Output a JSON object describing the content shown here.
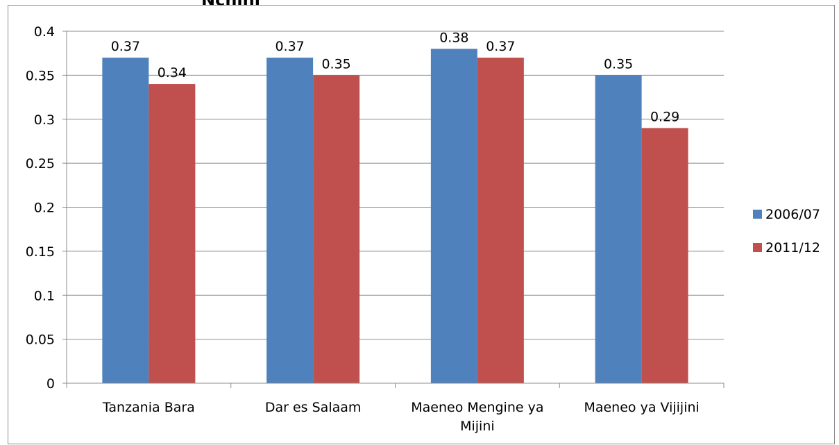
{
  "chart_data": {
    "type": "bar",
    "title_fragment": "Nchini",
    "categories": [
      [
        "Tanzania Bara"
      ],
      [
        "Dar es Salaam"
      ],
      [
        "Maeneo Mengine ya",
        "Mijini"
      ],
      [
        "Maeneo ya Vijijini"
      ]
    ],
    "series": [
      {
        "name": "2006/07",
        "color": "#4f81bd",
        "values": [
          0.37,
          0.37,
          0.38,
          0.35
        ]
      },
      {
        "name": "2011/12",
        "color": "#c0504d",
        "values": [
          0.34,
          0.35,
          0.37,
          0.29
        ]
      }
    ],
    "ylim": [
      0,
      0.4
    ],
    "yticks": [
      "0",
      "0.05",
      "0.1",
      "0.15",
      "0.2",
      "0.25",
      "0.3",
      "0.35",
      "0.4"
    ],
    "grid": true,
    "legend_position": "right",
    "xlabel": "",
    "ylabel": ""
  }
}
